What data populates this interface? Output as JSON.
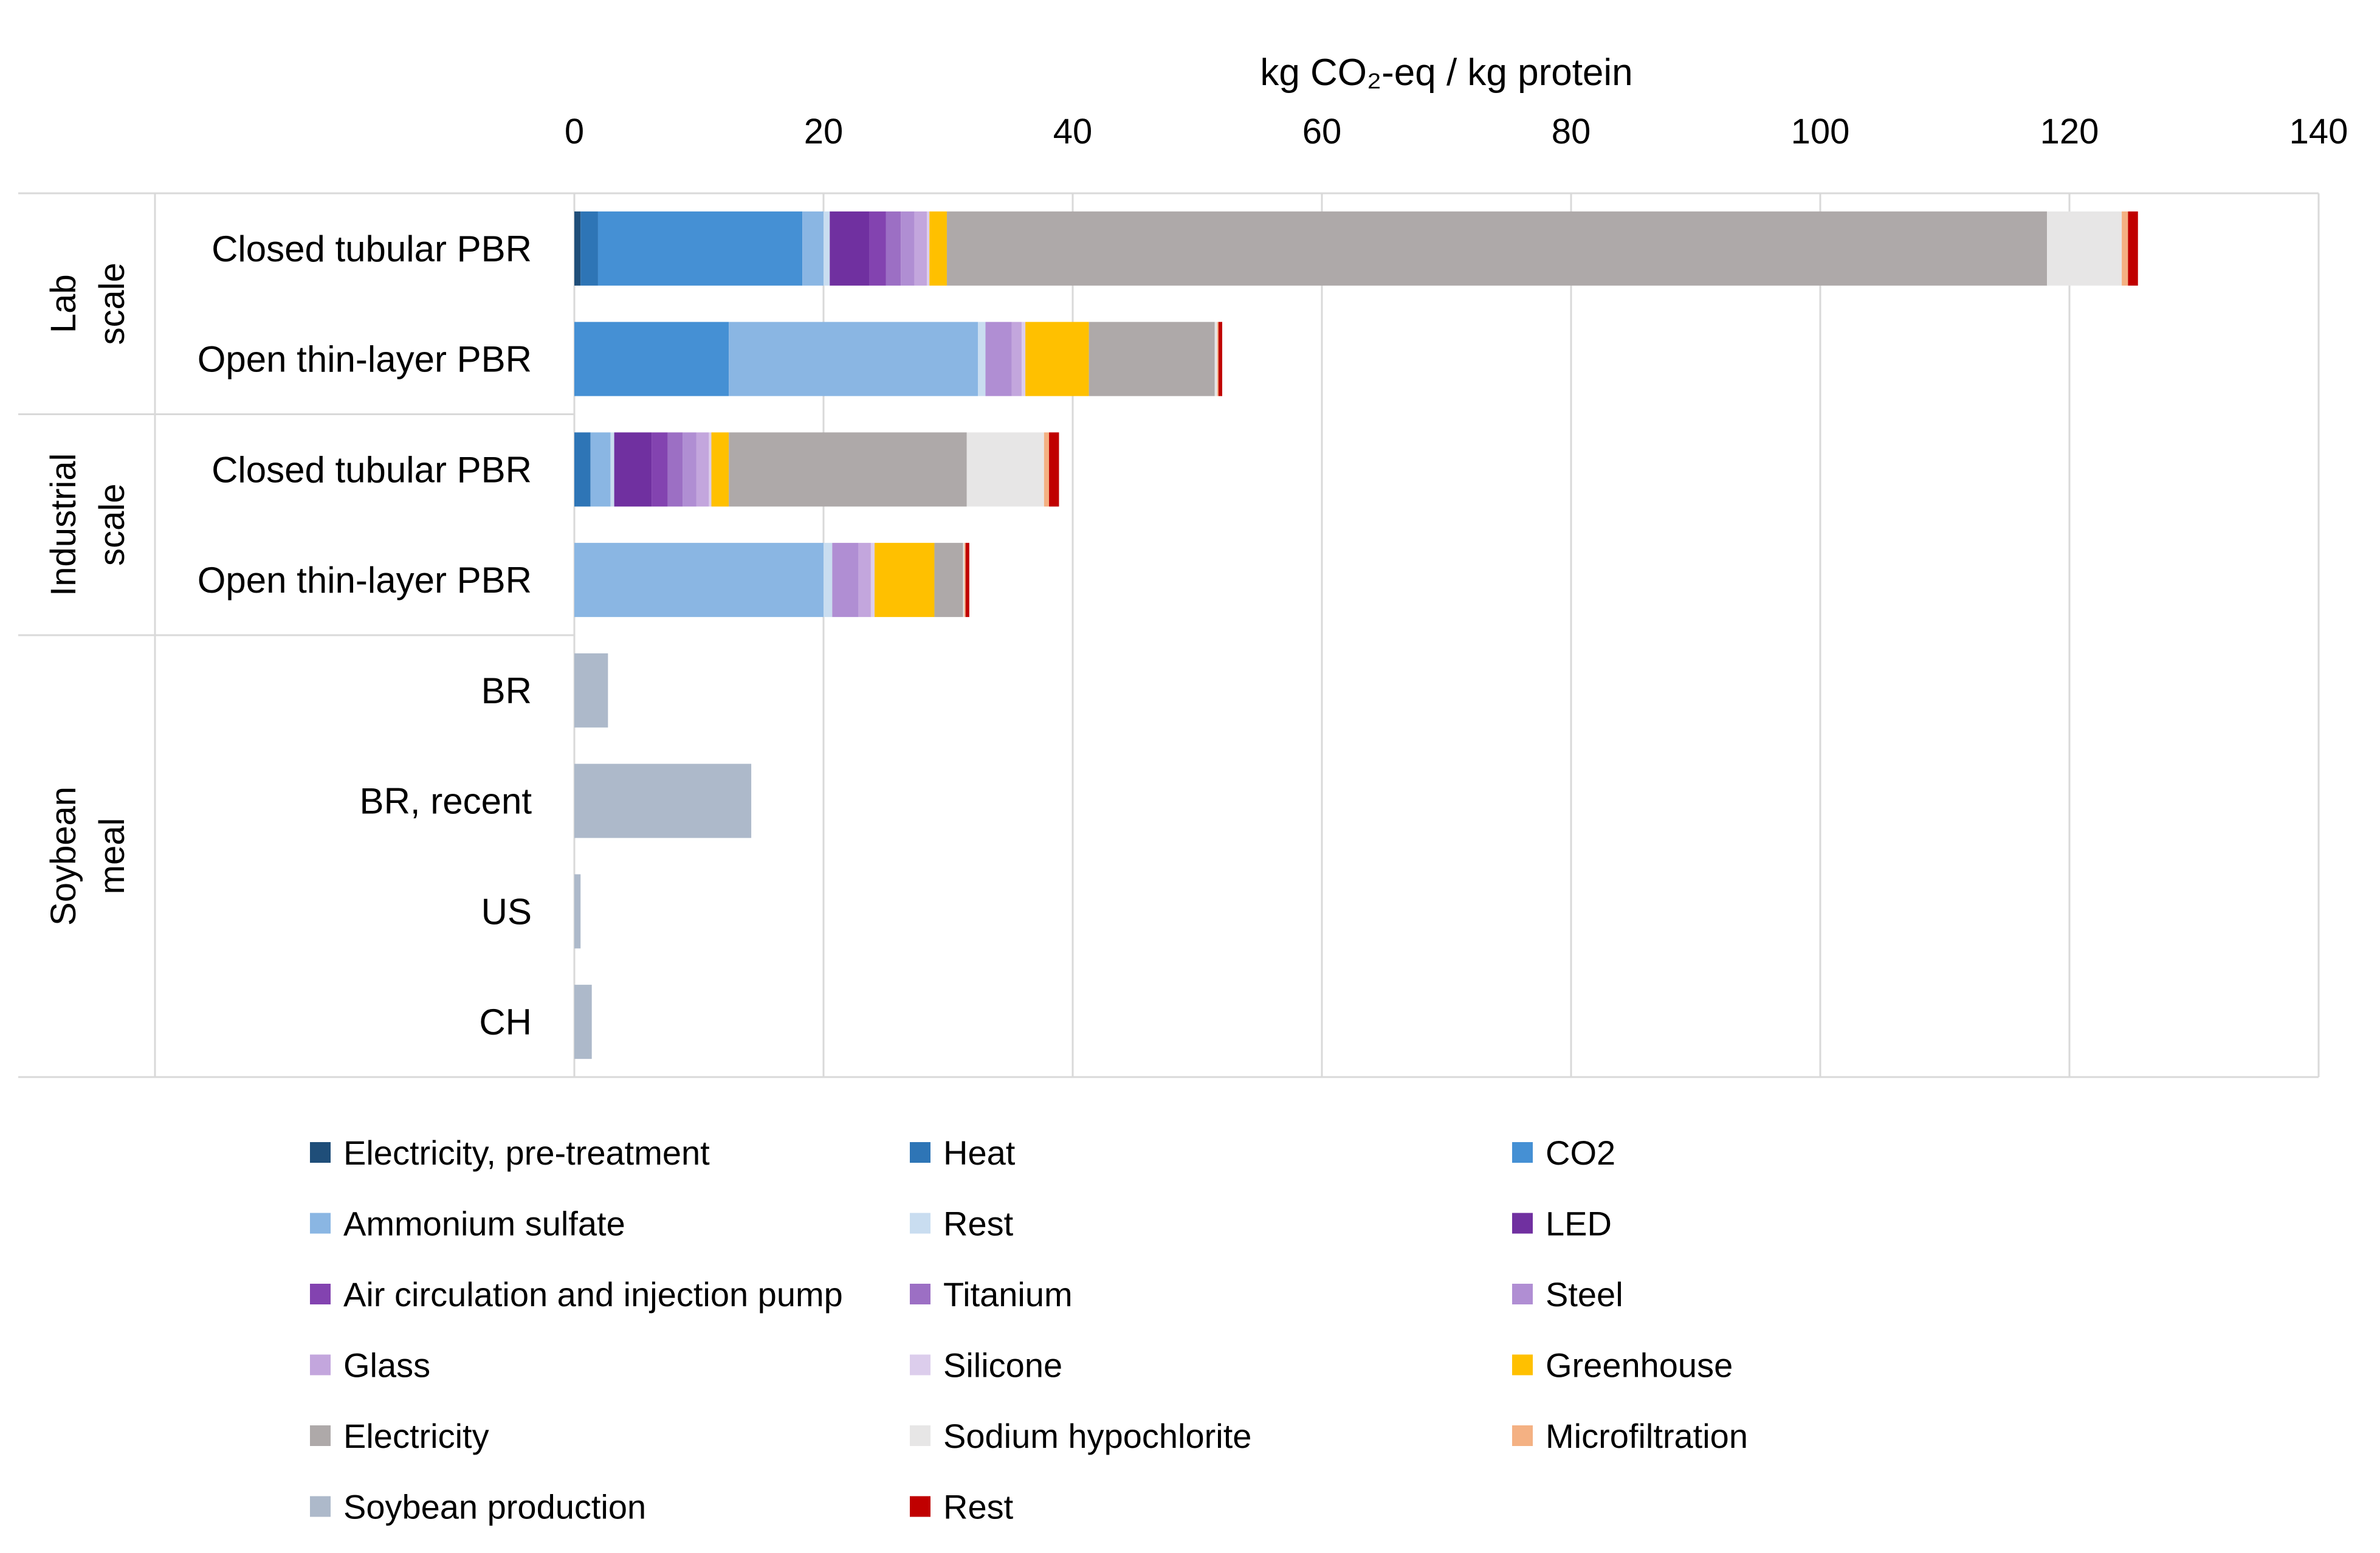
{
  "chart_data": {
    "type": "bar",
    "orientation": "horizontal",
    "stacked": true,
    "xlabel": "kg CO₂-eq / kg protein",
    "xlim": [
      0,
      140
    ],
    "xticks": [
      0,
      20,
      40,
      60,
      80,
      100,
      120,
      140
    ],
    "grid": true,
    "legend_position": "bottom",
    "groups": [
      {
        "name": "Lab scale",
        "lines": [
          "Lab",
          "scale"
        ],
        "categories": [
          "Closed tubular PBR",
          "Open thin-layer PBR"
        ]
      },
      {
        "name": "Industrial scale",
        "lines": [
          "Industrial",
          "scale"
        ],
        "categories": [
          "Closed tubular PBR",
          "Open thin-layer PBR"
        ]
      },
      {
        "name": "Soybean meal",
        "lines": [
          "Soybean",
          "meal"
        ],
        "categories": [
          "BR",
          "BR, recent",
          "US",
          "CH"
        ]
      }
    ],
    "categories": [
      "Closed tubular PBR",
      "Open thin-layer PBR",
      "Closed tubular PBR",
      "Open thin-layer PBR",
      "BR",
      "BR, recent",
      "US",
      "CH"
    ],
    "series": [
      {
        "name": "Electricity, pre-treatment",
        "color": "#1F4E79",
        "values": [
          0.5,
          0,
          0,
          0,
          0,
          0,
          0,
          0
        ]
      },
      {
        "name": "Heat",
        "color": "#2E75B6",
        "values": [
          1.4,
          0,
          1.3,
          0,
          0,
          0,
          0,
          0
        ]
      },
      {
        "name": "CO2",
        "color": "#4590D4",
        "values": [
          16.4,
          12.4,
          0,
          0,
          0,
          0,
          0,
          0
        ]
      },
      {
        "name": "Ammonium sulfate",
        "color": "#8AB6E3",
        "values": [
          1.7,
          20.0,
          1.6,
          20.0,
          0,
          0,
          0,
          0
        ]
      },
      {
        "name": "Rest",
        "color": "#C9DDF0",
        "values": [
          0.5,
          0.6,
          0.3,
          0.7,
          0,
          0,
          0,
          0
        ]
      },
      {
        "name": "LED",
        "color": "#7030A0",
        "values": [
          3.2,
          0,
          3.0,
          0,
          0,
          0,
          0,
          0
        ]
      },
      {
        "name": "Air circulation and injection pump",
        "color": "#8343B0",
        "values": [
          1.3,
          0,
          1.3,
          0,
          0,
          0,
          0,
          0
        ]
      },
      {
        "name": "Titanium",
        "color": "#9C6FC4",
        "values": [
          1.2,
          0,
          1.2,
          0,
          0,
          0,
          0,
          0
        ]
      },
      {
        "name": "Steel",
        "color": "#B08ED3",
        "values": [
          1.1,
          2.1,
          1.1,
          2.1,
          0,
          0,
          0,
          0
        ]
      },
      {
        "name": "Glass",
        "color": "#C3A6DD",
        "values": [
          1.0,
          0.8,
          1.0,
          1.0,
          0,
          0,
          0,
          0
        ]
      },
      {
        "name": "Silicone",
        "color": "#DCCDEC",
        "values": [
          0.2,
          0.3,
          0.2,
          0.3,
          0,
          0,
          0,
          0
        ]
      },
      {
        "name": "Greenhouse",
        "color": "#FFC000",
        "values": [
          1.4,
          5.1,
          1.4,
          4.8,
          0,
          0,
          0,
          0
        ]
      },
      {
        "name": "Electricity",
        "color": "#AEA9A9",
        "values": [
          88.3,
          10.1,
          19.1,
          2.3,
          0,
          0,
          0,
          0
        ]
      },
      {
        "name": "Sodium hypochlorite",
        "color": "#E7E6E6",
        "values": [
          6.0,
          0.2,
          6.2,
          0.1,
          0,
          0,
          0,
          0
        ]
      },
      {
        "name": "Microfiltration",
        "color": "#F4B183",
        "values": [
          0.5,
          0.1,
          0.4,
          0.1,
          0,
          0,
          0,
          0
        ]
      },
      {
        "name": "Soybean production",
        "color": "#ADB9CA",
        "values": [
          0,
          0,
          0,
          0,
          2.7,
          14.2,
          0.5,
          1.4
        ]
      },
      {
        "name": "Rest",
        "color": "#C00000",
        "values": [
          0.8,
          0.3,
          0.8,
          0.3,
          0,
          0,
          0,
          0
        ]
      }
    ]
  }
}
